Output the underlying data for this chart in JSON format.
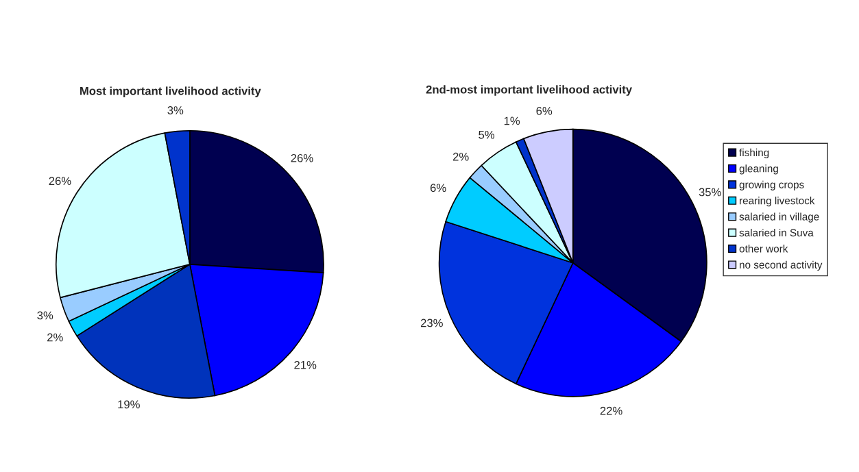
{
  "chart_data": [
    {
      "type": "pie",
      "title": "Most important livelihood activity",
      "categories": [
        null,
        null,
        null,
        null,
        null,
        null,
        null
      ],
      "values": [
        26,
        21,
        19,
        2,
        3,
        26,
        3
      ],
      "value_labels": [
        "26%",
        "21%",
        "19%",
        "2%",
        "3%",
        "26%",
        "3%"
      ],
      "colors": [
        "#000050",
        "#0000ff",
        "#0033bb",
        "#00ccff",
        "#99ccff",
        "#ccffff",
        "#0033cc"
      ],
      "legend": false
    },
    {
      "type": "pie",
      "title": "2nd-most important livelihood activity",
      "categories": [
        "fishing",
        "gleaning",
        "growing crops",
        "rearing livestock",
        "salaried in village",
        "salaried in Suva",
        "other work",
        "no second activity"
      ],
      "values": [
        35,
        22,
        23,
        6,
        2,
        5,
        1,
        6
      ],
      "value_labels": [
        "35%",
        "22%",
        "23%",
        "6%",
        "2%",
        "5%",
        "1%",
        "6%"
      ],
      "colors": [
        "#000050",
        "#0000ff",
        "#0033dd",
        "#00ccff",
        "#99ccff",
        "#ccffff",
        "#0033cc",
        "#ccccff"
      ],
      "legend": "right"
    }
  ]
}
